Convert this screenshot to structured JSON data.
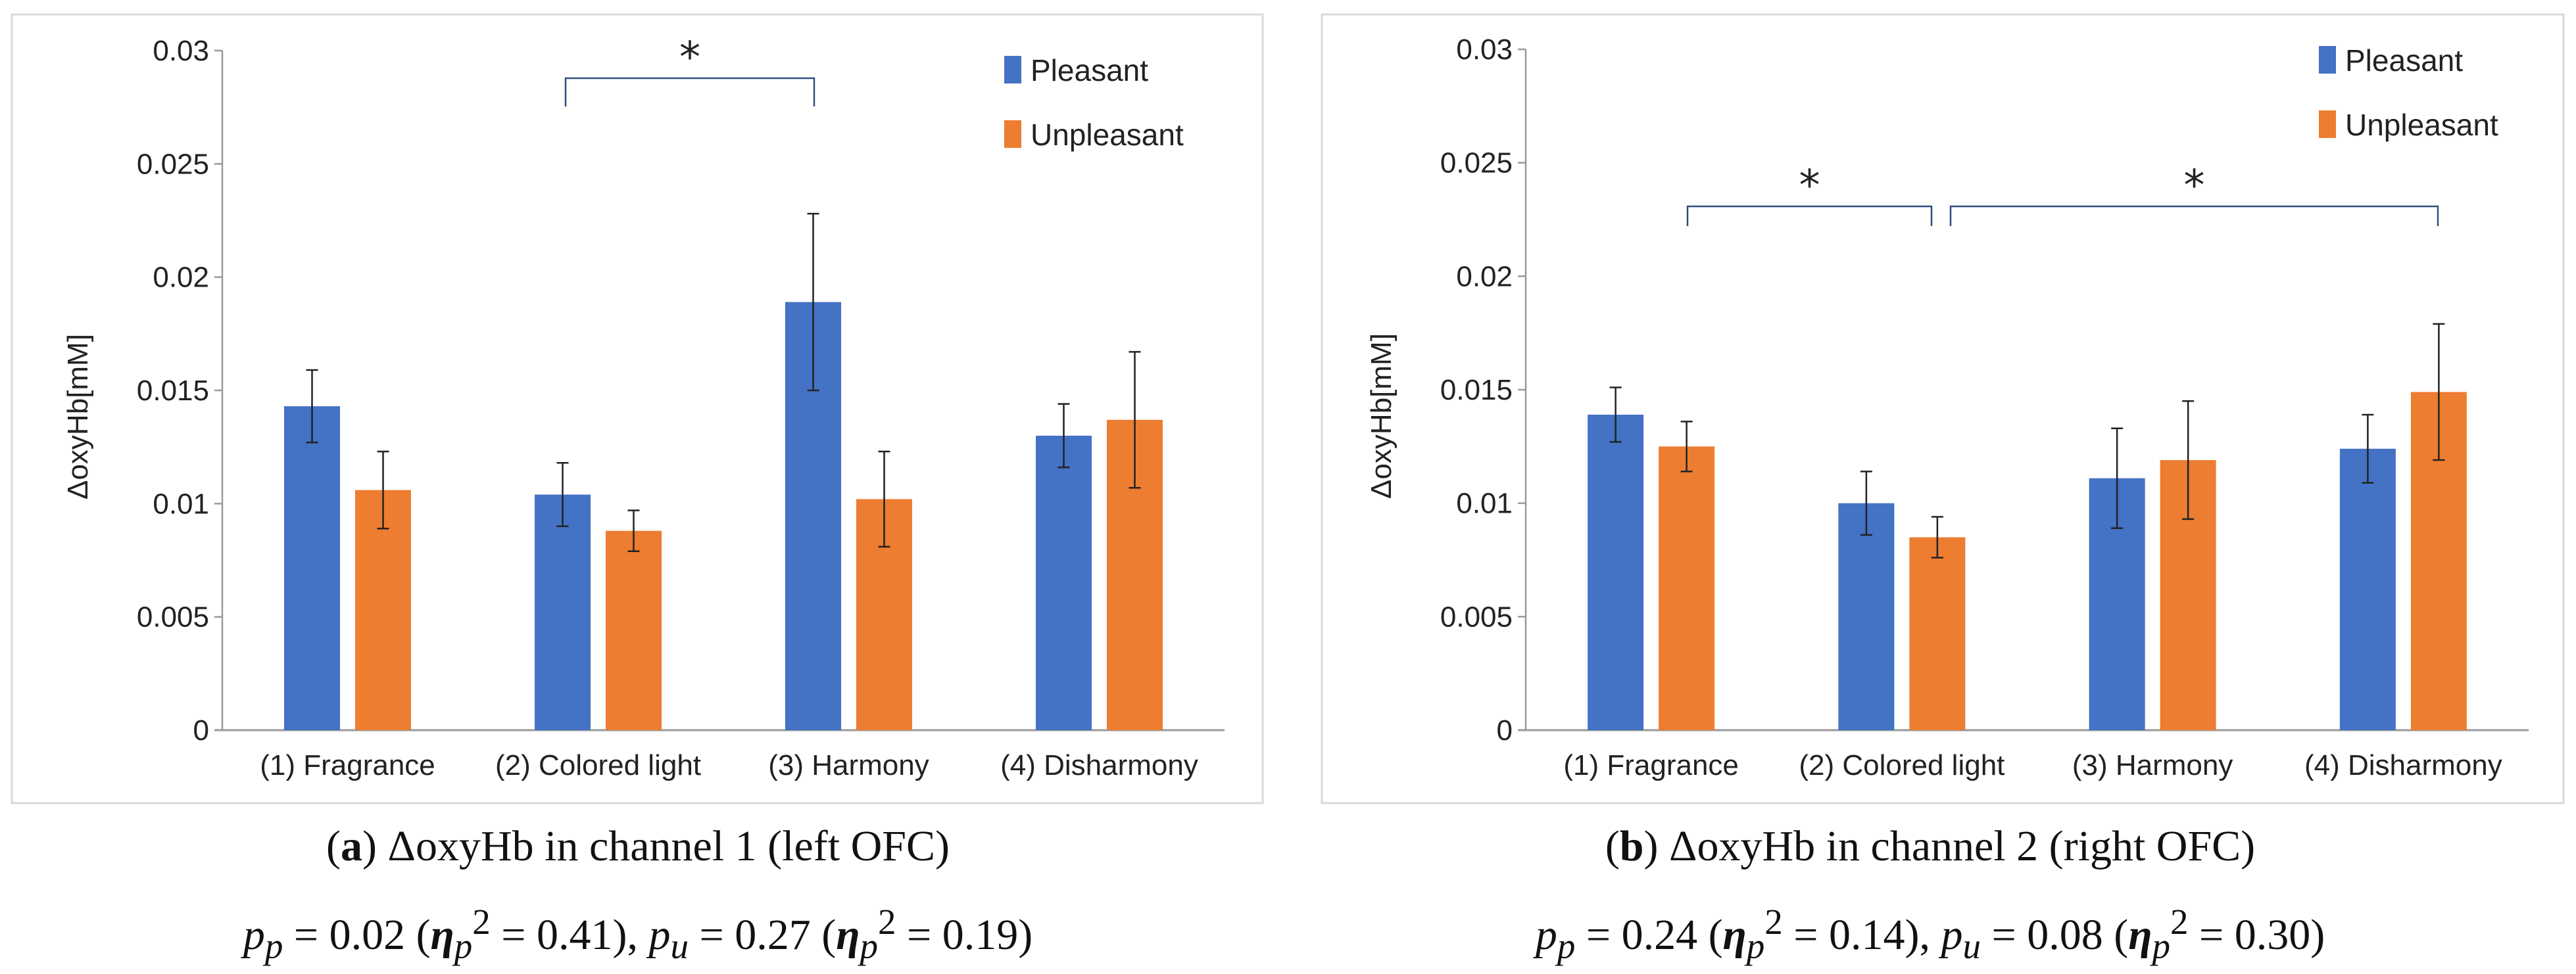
{
  "colors": {
    "pleasant": "#4472C4",
    "unpleasant": "#ED7D31",
    "bracket": "#2F4F7F"
  },
  "chart_data": [
    {
      "type": "bar",
      "panel": "a",
      "categories": [
        "(1) Fragrance",
        "(2) Colored light",
        "(3) Harmony",
        "(4) Disharmony"
      ],
      "series": [
        {
          "name": "Pleasant",
          "values": [
            0.0143,
            0.0104,
            0.0189,
            0.013
          ],
          "errors": [
            0.0016,
            0.0014,
            0.0039,
            0.0014
          ]
        },
        {
          "name": "Unpleasant",
          "values": [
            0.0106,
            0.0088,
            0.0102,
            0.0137
          ],
          "errors": [
            0.0017,
            0.0009,
            0.0021,
            0.003
          ]
        }
      ],
      "ylabel": "ΔoxyHb[mM]",
      "ylim": [
        0,
        0.03
      ],
      "yticks": [
        "0",
        "0.005",
        "0.01",
        "0.015",
        "0.02",
        "0.025",
        "0.03"
      ],
      "legend": "top-right",
      "significance": [
        {
          "label": "*",
          "from": "(2) Colored light Pleasant",
          "to": "(3) Harmony Pleasant"
        }
      ],
      "caption_title": {
        "tag": "a",
        "text": " ΔoxyHb in channel 1 (left OFC)"
      },
      "caption_stats": {
        "pp": "0.02",
        "etap": "0.41",
        "pu": "0.27",
        "etau": "0.19"
      }
    },
    {
      "type": "bar",
      "panel": "b",
      "categories": [
        "(1) Fragrance",
        "(2) Colored light",
        "(3) Harmony",
        "(4) Disharmony"
      ],
      "series": [
        {
          "name": "Pleasant",
          "values": [
            0.0139,
            0.01,
            0.0111,
            0.0124
          ],
          "errors": [
            0.0012,
            0.0014,
            0.0022,
            0.0015
          ]
        },
        {
          "name": "Unpleasant",
          "values": [
            0.0125,
            0.0085,
            0.0119,
            0.0149
          ],
          "errors": [
            0.0011,
            0.0009,
            0.0026,
            0.003
          ]
        }
      ],
      "ylabel": "ΔoxyHb[mM]",
      "ylim": [
        0,
        0.03
      ],
      "yticks": [
        "0",
        "0.005",
        "0.01",
        "0.015",
        "0.02",
        "0.025",
        "0.03"
      ],
      "legend": "top-right",
      "significance": [
        {
          "label": "*",
          "from": "(1) Fragrance Unpleasant",
          "to": "(2) Colored light Unpleasant"
        },
        {
          "label": "*",
          "from": "(2) Colored light Unpleasant",
          "to": "(4) Disharmony Unpleasant"
        }
      ],
      "caption_title": {
        "tag": "b",
        "text": " ΔoxyHb in channel 2 (right OFC)"
      },
      "caption_stats": {
        "pp": "0.24",
        "etap": "0.14",
        "pu": "0.08",
        "etau": "0.30"
      }
    }
  ]
}
